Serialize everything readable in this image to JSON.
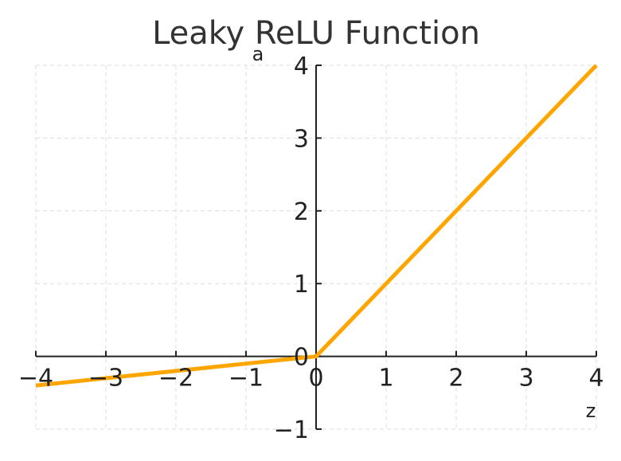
{
  "chart_data": {
    "type": "line",
    "title": "Leaky ReLU Function",
    "xlabel": "z",
    "ylabel": "a",
    "xlim": [
      -4,
      4
    ],
    "ylim": [
      -1,
      4
    ],
    "x_ticks": [
      -4,
      -3,
      -2,
      -1,
      0,
      1,
      2,
      3,
      4
    ],
    "y_ticks": [
      -1,
      0,
      1,
      2,
      3,
      4
    ],
    "x_tick_labels": [
      "−4",
      "−3",
      "−2",
      "−1",
      "0",
      "1",
      "2",
      "3",
      "4"
    ],
    "y_tick_labels": [
      "−1",
      "0",
      "1",
      "2",
      "3",
      "4"
    ],
    "grid": true,
    "series": [
      {
        "color": "#FFA500",
        "x": [
          -4,
          -3,
          -2,
          -1,
          0,
          1,
          2,
          3,
          4
        ],
        "y": [
          -0.4,
          -0.3,
          -0.2,
          -0.1,
          0,
          1,
          2,
          3,
          4
        ]
      }
    ]
  },
  "colors": {
    "axis": "#222222",
    "grid": "#dddddd",
    "title": "#333333"
  }
}
